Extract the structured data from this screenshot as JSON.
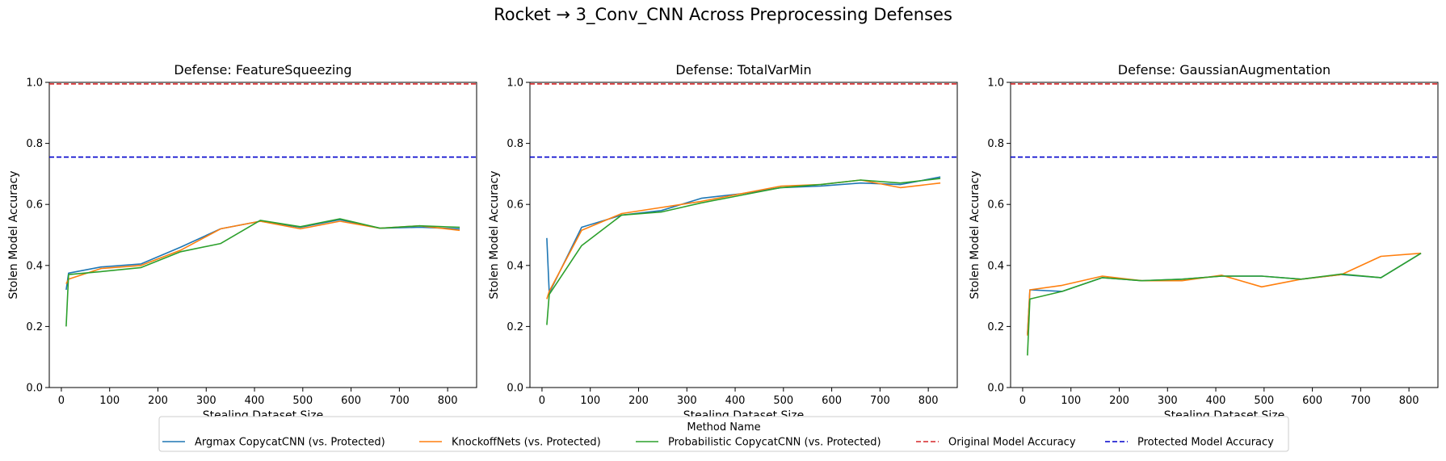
{
  "title": "Rocket → 3_Conv_CNN Across Preprocessing Defenses",
  "colors": {
    "argmax": "#1f77b4",
    "knockoff": "#ff7f0e",
    "prob": "#2ca02c",
    "original": "#d62728",
    "protected": "#0000cc"
  },
  "legend": {
    "title": "Method Name",
    "entries": [
      {
        "label": "Argmax CopycatCNN (vs. Protected)",
        "color": "#1f77b4",
        "style": "solid"
      },
      {
        "label": "KnockoffNets (vs. Protected)",
        "color": "#ff7f0e",
        "style": "solid"
      },
      {
        "label": "Probabilistic CopycatCNN (vs. Protected)",
        "color": "#2ca02c",
        "style": "solid"
      },
      {
        "label": "Original Model Accuracy",
        "color": "#d62728",
        "style": "dashed"
      },
      {
        "label": "Protected Model Accuracy",
        "color": "#0000cc",
        "style": "dashed"
      }
    ]
  },
  "chart_data": [
    {
      "type": "line",
      "title": "Defense: FeatureSqueezing",
      "xlabel": "Stealing Dataset Size",
      "ylabel": "Stolen Model Accuracy",
      "xlim": [
        -25,
        860
      ],
      "ylim": [
        0.0,
        1.0
      ],
      "xticks": [
        0,
        100,
        200,
        300,
        400,
        500,
        600,
        700,
        800
      ],
      "yticks": [
        0.0,
        0.2,
        0.4,
        0.6,
        0.8,
        1.0
      ],
      "grid": false,
      "hlines": [
        {
          "name": "Original Model Accuracy",
          "y": 0.995,
          "color": "#d62728"
        },
        {
          "name": "Protected Model Accuracy",
          "y": 0.755,
          "color": "#0000cc"
        }
      ],
      "series": [
        {
          "name": "Argmax CopycatCNN (vs. Protected)",
          "color": "#1f77b4",
          "x": [
            10,
            15,
            82,
            165,
            247,
            330,
            412,
            495,
            577,
            660,
            742,
            825
          ],
          "y": [
            0.32,
            0.375,
            0.395,
            0.405,
            0.46,
            0.52,
            0.545,
            0.525,
            0.55,
            0.522,
            0.525,
            0.52
          ]
        },
        {
          "name": "KnockoffNets (vs. Protected)",
          "color": "#ff7f0e",
          "x": [
            10,
            15,
            82,
            165,
            247,
            330,
            412,
            495,
            577,
            660,
            742,
            825
          ],
          "y": [
            0.34,
            0.355,
            0.39,
            0.4,
            0.45,
            0.52,
            0.545,
            0.52,
            0.545,
            0.522,
            0.53,
            0.515
          ]
        },
        {
          "name": "Probabilistic CopycatCNN (vs. Protected)",
          "color": "#2ca02c",
          "x": [
            10,
            15,
            82,
            165,
            247,
            330,
            412,
            495,
            577,
            660,
            742,
            825
          ],
          "y": [
            0.2,
            0.37,
            0.38,
            0.393,
            0.445,
            0.472,
            0.548,
            0.527,
            0.553,
            0.522,
            0.53,
            0.525
          ]
        }
      ]
    },
    {
      "type": "line",
      "title": "Defense: TotalVarMin",
      "xlabel": "Stealing Dataset Size",
      "ylabel": "Stolen Model Accuracy",
      "xlim": [
        -25,
        860
      ],
      "ylim": [
        0.0,
        1.0
      ],
      "xticks": [
        0,
        100,
        200,
        300,
        400,
        500,
        600,
        700,
        800
      ],
      "yticks": [
        0.0,
        0.2,
        0.4,
        0.6,
        0.8,
        1.0
      ],
      "grid": false,
      "hlines": [
        {
          "name": "Original Model Accuracy",
          "y": 0.995,
          "color": "#d62728"
        },
        {
          "name": "Protected Model Accuracy",
          "y": 0.755,
          "color": "#0000cc"
        }
      ],
      "series": [
        {
          "name": "Argmax CopycatCNN (vs. Protected)",
          "color": "#1f77b4",
          "x": [
            10,
            15,
            82,
            165,
            247,
            330,
            412,
            495,
            577,
            660,
            742,
            825
          ],
          "y": [
            0.49,
            0.31,
            0.525,
            0.565,
            0.58,
            0.62,
            0.635,
            0.655,
            0.66,
            0.67,
            0.665,
            0.69
          ]
        },
        {
          "name": "KnockoffNets (vs. Protected)",
          "color": "#ff7f0e",
          "x": [
            10,
            15,
            82,
            165,
            247,
            330,
            412,
            495,
            577,
            660,
            742,
            825
          ],
          "y": [
            0.29,
            0.315,
            0.515,
            0.57,
            0.59,
            0.61,
            0.635,
            0.66,
            0.665,
            0.68,
            0.655,
            0.67
          ]
        },
        {
          "name": "Probabilistic CopycatCNN (vs. Protected)",
          "color": "#2ca02c",
          "x": [
            10,
            15,
            82,
            165,
            247,
            330,
            412,
            495,
            577,
            660,
            742,
            825
          ],
          "y": [
            0.205,
            0.305,
            0.465,
            0.565,
            0.575,
            0.605,
            0.63,
            0.655,
            0.665,
            0.68,
            0.67,
            0.685
          ]
        }
      ]
    },
    {
      "type": "line",
      "title": "Defense: GaussianAugmentation",
      "xlabel": "Stealing Dataset Size",
      "ylabel": "Stolen Model Accuracy",
      "xlim": [
        -25,
        860
      ],
      "ylim": [
        0.0,
        1.0
      ],
      "xticks": [
        0,
        100,
        200,
        300,
        400,
        500,
        600,
        700,
        800
      ],
      "yticks": [
        0.0,
        0.2,
        0.4,
        0.6,
        0.8,
        1.0
      ],
      "grid": false,
      "hlines": [
        {
          "name": "Original Model Accuracy",
          "y": 0.995,
          "color": "#d62728"
        },
        {
          "name": "Protected Model Accuracy",
          "y": 0.755,
          "color": "#0000cc"
        }
      ],
      "series": [
        {
          "name": "Argmax CopycatCNN (vs. Protected)",
          "color": "#1f77b4",
          "x": [
            10,
            15,
            82,
            165,
            247,
            330,
            412,
            495,
            577,
            660,
            742,
            825
          ],
          "y": [
            0.175,
            0.32,
            0.315,
            0.36,
            0.35,
            0.355,
            0.365,
            0.365,
            0.355,
            0.37,
            0.36,
            0.44
          ]
        },
        {
          "name": "KnockoffNets (vs. Protected)",
          "color": "#ff7f0e",
          "x": [
            10,
            15,
            82,
            165,
            247,
            330,
            412,
            495,
            577,
            660,
            742,
            825
          ],
          "y": [
            0.17,
            0.32,
            0.335,
            0.365,
            0.35,
            0.35,
            0.368,
            0.33,
            0.355,
            0.37,
            0.43,
            0.44
          ]
        },
        {
          "name": "Probabilistic CopycatCNN (vs. Protected)",
          "color": "#2ca02c",
          "x": [
            10,
            15,
            82,
            165,
            247,
            330,
            412,
            495,
            577,
            660,
            742,
            825
          ],
          "y": [
            0.105,
            0.29,
            0.315,
            0.36,
            0.35,
            0.355,
            0.365,
            0.365,
            0.355,
            0.372,
            0.36,
            0.44
          ]
        }
      ]
    }
  ]
}
